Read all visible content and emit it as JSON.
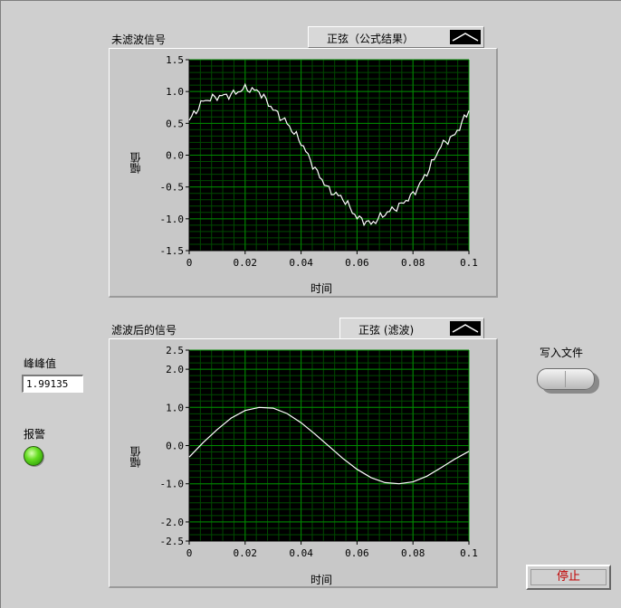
{
  "graph1": {
    "title": "未滤波信号",
    "legend_label": "正弦（公式结果）",
    "xlabel": "时间",
    "ylabel": "幅值"
  },
  "graph2": {
    "title": "滤波后的信号",
    "legend_label": "正弦 (滤波)",
    "xlabel": "时间",
    "ylabel": "幅值"
  },
  "peak": {
    "label": "峰峰值",
    "value": "1.99135"
  },
  "alarm": {
    "label": "报警",
    "state": "on",
    "color": "#44cc00"
  },
  "write_file": {
    "label": "写入文件",
    "state": "off"
  },
  "stop": {
    "label": "停止"
  },
  "colors": {
    "plot_bg": "#000000",
    "grid": "#008a00",
    "trace": "#ffffff",
    "stop_text": "#c00000"
  },
  "chart_data": [
    {
      "type": "line",
      "title": "未滤波信号",
      "xlabel": "时间",
      "ylabel": "幅值",
      "xlim": [
        0,
        0.1
      ],
      "ylim": [
        -1.5,
        1.5
      ],
      "xticks": [
        "0",
        "0.02",
        "0.04",
        "0.06",
        "0.08",
        "0.1"
      ],
      "yticks": [
        "1.5",
        "1.0",
        "0.5",
        "0.0",
        "-0.5",
        "-1.0",
        "-1.5"
      ],
      "grid": true,
      "series": [
        {
          "name": "正弦（公式结果）",
          "x": [
            0,
            0.005,
            0.01,
            0.015,
            0.02,
            0.025,
            0.03,
            0.035,
            0.04,
            0.045,
            0.05,
            0.055,
            0.06,
            0.065,
            0.07,
            0.075,
            0.08,
            0.085,
            0.09,
            0.095,
            0.1
          ],
          "y": [
            0.55,
            0.85,
            0.92,
            0.95,
            1.05,
            1.0,
            0.72,
            0.5,
            0.2,
            -0.22,
            -0.55,
            -0.68,
            -0.98,
            -1.08,
            -0.92,
            -0.8,
            -0.62,
            -0.28,
            0.15,
            0.32,
            0.7
          ]
        }
      ]
    },
    {
      "type": "line",
      "title": "滤波后的信号",
      "xlabel": "时间",
      "ylabel": "幅值",
      "xlim": [
        0,
        0.1
      ],
      "ylim": [
        -2.5,
        2.5
      ],
      "xticks": [
        "0",
        "0.02",
        "0.04",
        "0.06",
        "0.08",
        "0.1"
      ],
      "yticks": [
        "2.5",
        "2.0",
        "1.0",
        "0.0",
        "-1.0",
        "-2.0",
        "-2.5"
      ],
      "grid": true,
      "series": [
        {
          "name": "正弦 (滤波)",
          "x": [
            0,
            0.005,
            0.01,
            0.015,
            0.02,
            0.025,
            0.03,
            0.035,
            0.04,
            0.045,
            0.05,
            0.055,
            0.06,
            0.065,
            0.07,
            0.075,
            0.08,
            0.085,
            0.09,
            0.095,
            0.1
          ],
          "y": [
            -0.3,
            0.08,
            0.42,
            0.72,
            0.92,
            1.0,
            0.98,
            0.84,
            0.6,
            0.3,
            -0.02,
            -0.34,
            -0.62,
            -0.84,
            -0.97,
            -1.0,
            -0.95,
            -0.8,
            -0.58,
            -0.35,
            -0.15
          ]
        }
      ]
    }
  ]
}
